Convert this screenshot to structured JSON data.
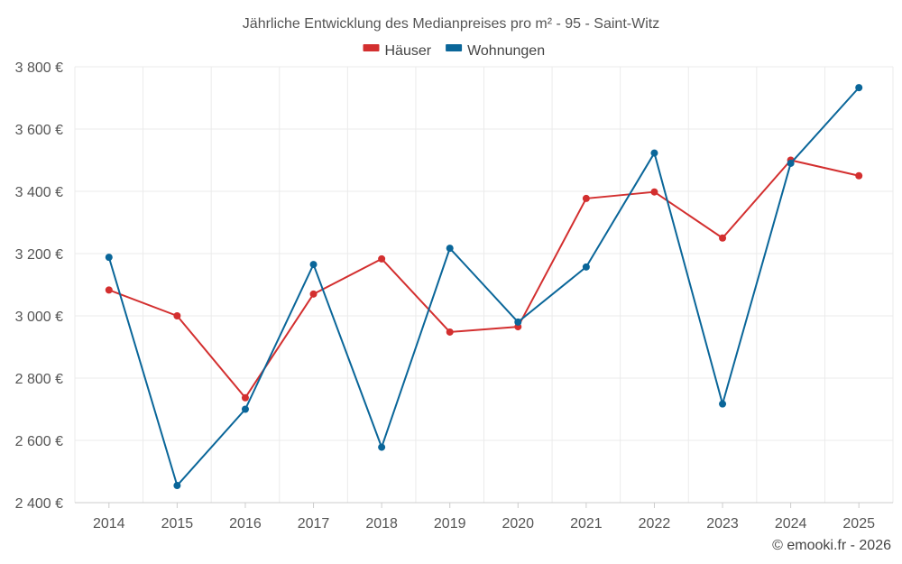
{
  "chart_data": {
    "type": "line",
    "title": "Jährliche Entwicklung des Medianpreises pro m² - 95 - Saint-Witz",
    "categories": [
      "2014",
      "2015",
      "2016",
      "2017",
      "2018",
      "2019",
      "2020",
      "2021",
      "2022",
      "2023",
      "2024",
      "2025"
    ],
    "series": [
      {
        "name": "Häuser",
        "color": "#d32f2f",
        "values": [
          3083,
          3000,
          2737,
          3070,
          3183,
          2948,
          2965,
          3377,
          3398,
          3250,
          3500,
          3450
        ]
      },
      {
        "name": "Wohnungen",
        "color": "#0a6699",
        "values": [
          3188,
          2455,
          2700,
          3165,
          2578,
          3217,
          2980,
          3157,
          3523,
          2717,
          3490,
          3733
        ]
      }
    ],
    "ylim": [
      2400,
      3800
    ],
    "yticks": [
      2400,
      2600,
      2800,
      3000,
      3200,
      3400,
      3600,
      3800
    ],
    "ytick_labels": [
      "2 400 €",
      "2 600 €",
      "2 800 €",
      "3 000 €",
      "3 200 €",
      "3 400 €",
      "3 600 €",
      "3 800 €"
    ],
    "xlabel": "",
    "ylabel": "",
    "grid": true,
    "legend_position": "top-center"
  },
  "credit": "© emooki.fr - 2026"
}
